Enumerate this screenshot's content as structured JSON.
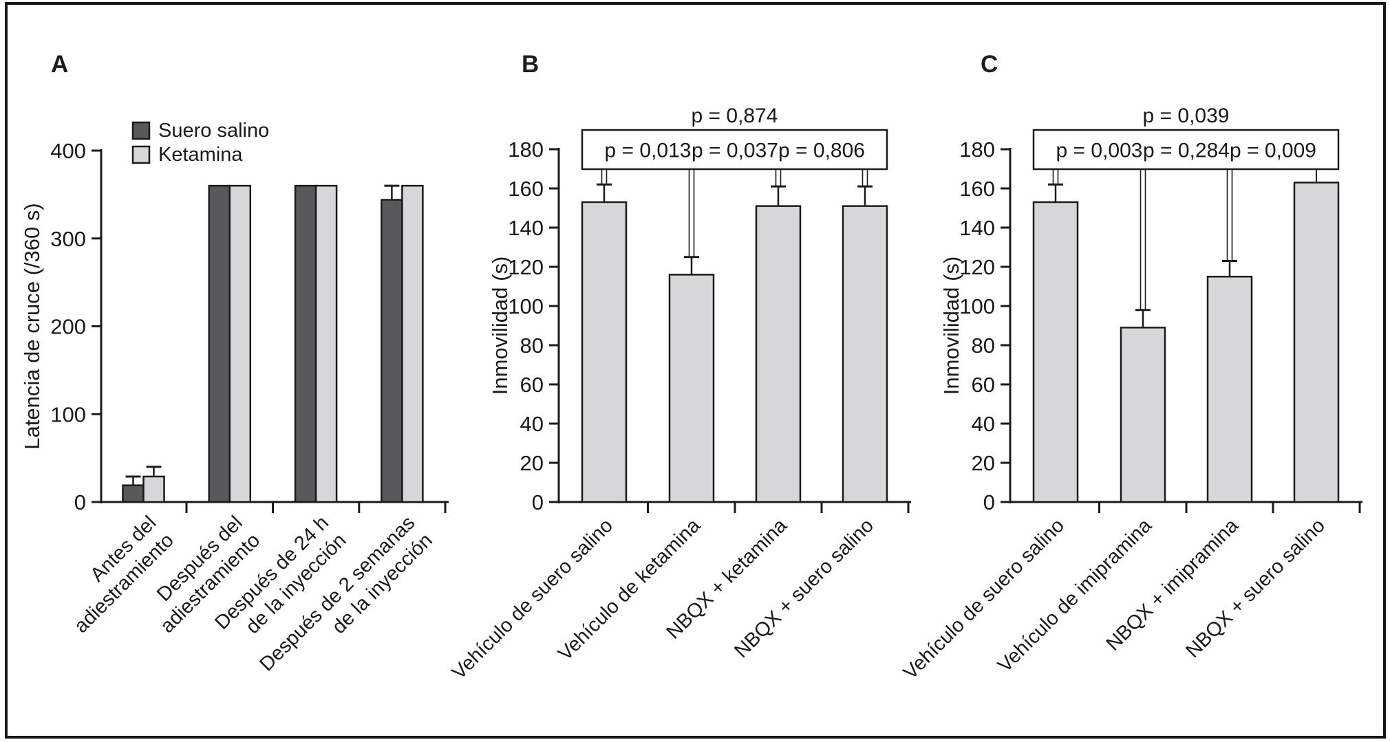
{
  "figure": {
    "background": "#ffffff",
    "border_color": "#161616",
    "text_color": "#1a1a1a"
  },
  "panels": [
    {
      "label": "A"
    },
    {
      "label": "B"
    },
    {
      "label": "C"
    }
  ],
  "chart_data": [
    {
      "type": "bar",
      "title": "",
      "xlabel": "",
      "ylabel": "Latencia de cruce (/360 s)",
      "ylim": [
        0,
        400
      ],
      "ytick_step": 100,
      "ytick_labels": [
        "0",
        "100",
        "200",
        "300",
        "400"
      ],
      "grid": false,
      "legend_position": "top-left",
      "categories": [
        [
          "Antes del",
          "adiestramiento"
        ],
        [
          "Después del",
          "adiestramiento"
        ],
        [
          "Después de 24 h",
          "de la inyección"
        ],
        [
          "Después de 2 semanas",
          "de la inyección"
        ]
      ],
      "series": [
        {
          "name": "Suero salino",
          "color": "#58595b",
          "values": [
            19,
            360,
            360,
            344
          ],
          "errors": [
            10,
            0,
            0,
            16
          ]
        },
        {
          "name": "Ketamina",
          "color": "#d6d7d8",
          "values": [
            29,
            360,
            360,
            360
          ],
          "errors": [
            11,
            0,
            0,
            0
          ]
        }
      ]
    },
    {
      "type": "bar",
      "title": "",
      "xlabel": "",
      "ylabel": "Inmovilidad (s)",
      "ylim": [
        0,
        180
      ],
      "ytick_step": 20,
      "ytick_labels": [
        "0",
        "20",
        "40",
        "60",
        "80",
        "100",
        "120",
        "140",
        "160",
        "180"
      ],
      "grid": false,
      "categories": [
        "Vehículo de suero salino",
        "Vehículo de ketamina",
        "NBQX + ketamina",
        "NBQX + suero salino"
      ],
      "series": [
        {
          "name": "",
          "color": "#d6d7d8",
          "values": [
            153,
            116,
            151,
            151
          ],
          "errors": [
            9,
            9,
            10,
            10
          ]
        }
      ],
      "annotations": {
        "overall": "p = 0,874",
        "pairwise": [
          "p = 0,013",
          "p = 0,037",
          "p = 0,806"
        ]
      }
    },
    {
      "type": "bar",
      "title": "",
      "xlabel": "",
      "ylabel": "Inmovilidad (s)",
      "ylim": [
        0,
        180
      ],
      "ytick_step": 20,
      "ytick_labels": [
        "0",
        "20",
        "40",
        "60",
        "80",
        "100",
        "120",
        "140",
        "160",
        "180"
      ],
      "grid": false,
      "categories": [
        "Vehículo de suero salino",
        "Vehículo de imipramina",
        "NBQX + imipramina",
        "NBQX + suero salino"
      ],
      "series": [
        {
          "name": "",
          "color": "#d6d7d8",
          "values": [
            153,
            89,
            115,
            163
          ],
          "errors": [
            9,
            9,
            8,
            0
          ]
        }
      ],
      "annotations": {
        "overall": "p = 0,039",
        "pairwise": [
          "p = 0,003",
          "p = 0,284",
          "p = 0,009"
        ]
      }
    }
  ]
}
